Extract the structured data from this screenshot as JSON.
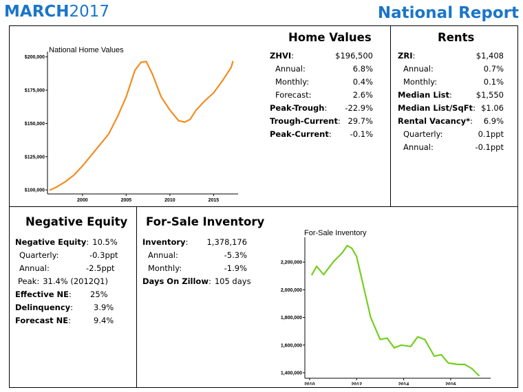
{
  "header": {
    "month": "MARCH",
    "year": "2017",
    "report_title": "National Report"
  },
  "home_values": {
    "title": "Home Values",
    "rows": [
      {
        "label": "ZHVI",
        "sep": ":",
        "value": "$196,500",
        "bold": true,
        "indent": false
      },
      {
        "label": "Annual",
        "sep": ":",
        "value": "6.8%",
        "bold": false,
        "indent": true
      },
      {
        "label": "Monthly",
        "sep": ":",
        "value": "0.4%",
        "bold": false,
        "indent": true
      },
      {
        "label": "Forecast",
        "sep": ":",
        "value": "2.6%",
        "bold": false,
        "indent": true
      },
      {
        "label": "Peak-Trough",
        "sep": ":",
        "value": "-22.9%",
        "bold": true,
        "indent": false
      },
      {
        "label": "Trough-Current",
        "sep": ":",
        "value": "29.7%",
        "bold": true,
        "indent": false
      },
      {
        "label": "Peak-Current",
        "sep": ":",
        "value": "-0.1%",
        "bold": true,
        "indent": false
      }
    ]
  },
  "rents": {
    "title": "Rents",
    "rows": [
      {
        "label": "ZRI",
        "sep": ":",
        "value": "$1,408",
        "bold": true,
        "indent": false
      },
      {
        "label": "Annual",
        "sep": ":",
        "value": "0.7%",
        "bold": false,
        "indent": true
      },
      {
        "label": "Monthly",
        "sep": ":",
        "value": "0.1%",
        "bold": false,
        "indent": true
      },
      {
        "label": "Median List",
        "sep": ":",
        "value": "$1,550",
        "bold": true,
        "indent": false
      },
      {
        "label": "Median List/SqFt",
        "sep": ":",
        "value": "$1.06",
        "bold": true,
        "indent": false
      },
      {
        "label": "Rental Vacancy*",
        "sep": ":",
        "value": "6.9%",
        "bold": true,
        "indent": false
      },
      {
        "label": "Quarterly",
        "sep": ":",
        "value": "0.1ppt",
        "bold": false,
        "indent": true
      },
      {
        "label": "Annual",
        "sep": ":",
        "value": "-0.1ppt",
        "bold": false,
        "indent": true
      }
    ]
  },
  "negative_equity": {
    "title": "Negative Equity",
    "rows": [
      {
        "label": "Negative Equity",
        "sep": ":",
        "value": "10.5%",
        "bold": true,
        "indent": false
      },
      {
        "label": "Quarterly",
        "sep": ":",
        "value": "-0.3ppt",
        "bold": false,
        "indent": true
      },
      {
        "label": "Annual",
        "sep": ":",
        "value": "-2.5ppt",
        "bold": false,
        "indent": true
      },
      {
        "label": "Peak",
        "sep": ":",
        "value": "31.4% (2012Q1)",
        "bold": false,
        "indent": true
      },
      {
        "label": "Effective NE",
        "sep": ":",
        "value": "25%",
        "bold": true,
        "indent": false
      },
      {
        "label": "Delinquency",
        "sep": ":",
        "value": "3.9%",
        "bold": true,
        "indent": false
      },
      {
        "label": "Forecast NE",
        "sep": ":",
        "value": "9.4%",
        "bold": true,
        "indent": false
      }
    ]
  },
  "inventory": {
    "title": "For-Sale Inventory",
    "rows": [
      {
        "label": "Inventory",
        "sep": ":",
        "value": "1,378,176",
        "bold": true,
        "indent": false
      },
      {
        "label": "Annual",
        "sep": ":",
        "value": "-5.3%",
        "bold": false,
        "indent": true
      },
      {
        "label": "Monthly",
        "sep": ":",
        "value": "-1.9%",
        "bold": false,
        "indent": true
      },
      {
        "label": "Days On Zillow",
        "sep": ":",
        "value": "105 days",
        "bold": true,
        "indent": false
      }
    ]
  },
  "chart_data": [
    {
      "type": "line",
      "title": "National Home Values",
      "xlabel": "",
      "ylabel": "",
      "color": "#f28c1e",
      "xlim": [
        1996,
        2017.8
      ],
      "ylim": [
        97000,
        204000
      ],
      "x_ticks": [
        2000,
        2005,
        2010,
        2015
      ],
      "x_tick_labels": [
        "2000",
        "2005",
        "2010",
        "2015"
      ],
      "y_ticks": [
        100000,
        125000,
        150000,
        175000,
        200000
      ],
      "y_tick_labels": [
        "$100,000",
        "$125,000",
        "$150,000",
        "$175,000",
        "$200,000"
      ],
      "grid": false,
      "x": [
        1996.3,
        1997.0,
        1998.0,
        1999.0,
        2000.0,
        2001.0,
        2002.0,
        2003.0,
        2004.0,
        2005.0,
        2006.0,
        2006.7,
        2007.3,
        2008.0,
        2009.0,
        2010.0,
        2011.0,
        2011.7,
        2012.3,
        2013.0,
        2014.0,
        2015.0,
        2016.0,
        2017.0,
        2017.2
      ],
      "y": [
        100000,
        102000,
        106000,
        111000,
        118000,
        126000,
        134000,
        142000,
        155000,
        170000,
        190000,
        196000,
        196500,
        187000,
        170000,
        160000,
        152000,
        151000,
        153000,
        160000,
        167000,
        173000,
        182000,
        192000,
        196500
      ]
    },
    {
      "type": "line",
      "title": "For-Sale Inventory",
      "xlabel": "",
      "ylabel": "",
      "color": "#72cf1f",
      "xlim": [
        2009.8,
        2017.7
      ],
      "ylim": [
        1360000,
        2380000
      ],
      "x_ticks": [
        2010,
        2012,
        2014,
        2016
      ],
      "x_tick_labels": [
        "2010",
        "2012",
        "2014",
        "2016"
      ],
      "y_ticks": [
        1400000,
        1600000,
        1800000,
        2000000,
        2200000
      ],
      "y_tick_labels": [
        "1,400,000",
        "1,600,000",
        "1,800,000",
        "2,000,000",
        "2,200,000"
      ],
      "grid": false,
      "x": [
        2010.1,
        2010.3,
        2010.6,
        2011.0,
        2011.4,
        2011.6,
        2011.8,
        2012.0,
        2012.3,
        2012.6,
        2013.0,
        2013.3,
        2013.6,
        2013.9,
        2014.3,
        2014.6,
        2014.9,
        2015.3,
        2015.6,
        2015.9,
        2016.3,
        2016.6,
        2016.9,
        2017.2
      ],
      "y": [
        2110000,
        2170000,
        2110000,
        2200000,
        2270000,
        2320000,
        2300000,
        2240000,
        2020000,
        1800000,
        1640000,
        1650000,
        1580000,
        1600000,
        1590000,
        1660000,
        1640000,
        1520000,
        1530000,
        1470000,
        1460000,
        1460000,
        1430000,
        1380000
      ]
    }
  ]
}
